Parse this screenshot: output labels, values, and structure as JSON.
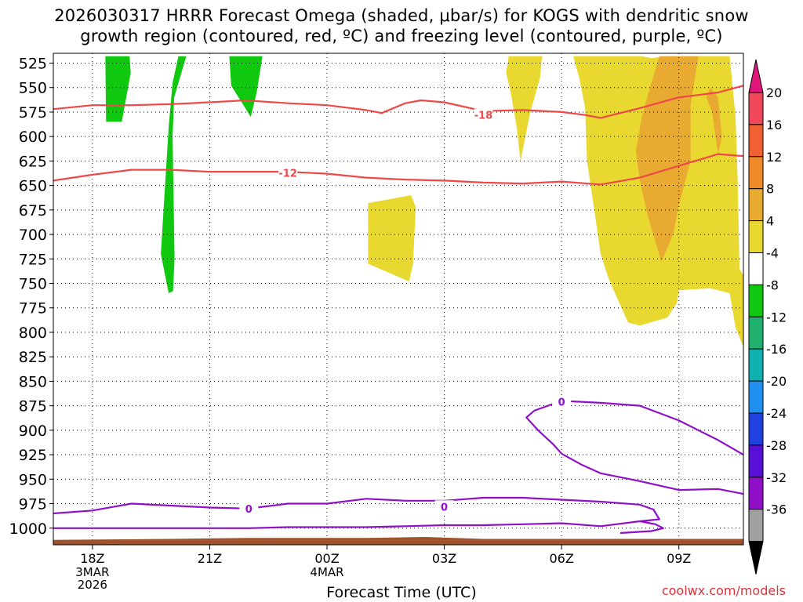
{
  "title_line1": "2026030317 HRRR Forecast Omega (shaded, μbar/s) for KOGS with dendritic snow",
  "title_line2": "growth region (contoured, red, ºC) and freezing level (contoured, purple, ºC)",
  "xlabel": "Forecast Time (UTC)",
  "credit": "coolwx.com/models",
  "chart_data": {
    "type": "heatmap",
    "x_range_hours": [
      -1.0,
      16.65
    ],
    "y_range_hpa": [
      515,
      1017
    ],
    "y_ticks": [
      525,
      550,
      575,
      600,
      625,
      650,
      675,
      700,
      725,
      750,
      775,
      800,
      825,
      850,
      875,
      900,
      925,
      950,
      975,
      1000
    ],
    "x_ticks": [
      {
        "h": 0,
        "label": "18Z",
        "sub": [
          "3MAR",
          "2026"
        ]
      },
      {
        "h": 3,
        "label": "21Z",
        "sub": []
      },
      {
        "h": 6,
        "label": "00Z",
        "sub": [
          "4MAR"
        ]
      },
      {
        "h": 9,
        "label": "03Z",
        "sub": []
      },
      {
        "h": 12,
        "label": "06Z",
        "sub": []
      },
      {
        "h": 15,
        "label": "09Z",
        "sub": []
      }
    ],
    "grid": true,
    "colorbar": {
      "labels": [
        "20",
        "16",
        "12",
        "8",
        "4",
        "-4",
        "-8",
        "-12",
        "-16",
        "-20",
        "-24",
        "-28",
        "-32",
        "-36"
      ],
      "colors": [
        "#f0485a",
        "#f06030",
        "#f08a28",
        "#e8aa30",
        "#e8d830",
        "#ffffff",
        "#10c810",
        "#20b070",
        "#10b0b0",
        "#2090f0",
        "#2040e0",
        "#5810d8",
        "#9010c8",
        "#a0a0a0"
      ],
      "top_color": "#e0167c",
      "bottom_color": "#000000"
    },
    "colors": {
      "dgz_line": "#f04848",
      "freezing_line": "#9010c8",
      "terrain": "#a0522d",
      "shade_light": "#e8d830",
      "shade_mid": "#e8aa30",
      "shade_neg": "#10c810"
    },
    "shaded_regions": [
      {
        "color": "#10c810",
        "points": [
          [
            0.33,
            518
          ],
          [
            0.95,
            518
          ],
          [
            0.98,
            535
          ],
          [
            0.75,
            585
          ],
          [
            0.35,
            585
          ]
        ]
      },
      {
        "color": "#10c810",
        "points": [
          [
            1.35,
            518
          ],
          [
            2.2,
            518
          ],
          [
            2.05,
            545
          ],
          [
            1.95,
            590
          ],
          [
            1.75,
            720
          ],
          [
            1.95,
            760
          ],
          [
            2.06,
            758
          ],
          [
            2.1,
            725
          ],
          [
            2.05,
            600
          ],
          [
            2.09,
            560
          ],
          [
            2.4,
            518
          ]
        ]
      },
      {
        "color": "#10c810",
        "points": [
          [
            3.5,
            518
          ],
          [
            4.35,
            518
          ],
          [
            4.2,
            555
          ],
          [
            4.05,
            580
          ],
          [
            3.55,
            548
          ]
        ]
      },
      {
        "color": "#e8d830",
        "points": [
          [
            7.05,
            668
          ],
          [
            8.15,
            660
          ],
          [
            8.27,
            672
          ],
          [
            8.2,
            730
          ],
          [
            8.1,
            748
          ],
          [
            7.05,
            730
          ]
        ]
      },
      {
        "color": "#e8d830",
        "points": [
          [
            10.65,
            518
          ],
          [
            11.5,
            518
          ],
          [
            11.45,
            540
          ],
          [
            11.2,
            575
          ],
          [
            10.95,
            625
          ],
          [
            10.85,
            590
          ],
          [
            10.7,
            555
          ],
          [
            10.58,
            535
          ]
        ]
      },
      {
        "color": "#e8d830",
        "points": [
          [
            12.3,
            518
          ],
          [
            14.05,
            518
          ],
          [
            14.3,
            520
          ],
          [
            14.7,
            518
          ],
          [
            15.5,
            518
          ],
          [
            15.9,
            518
          ],
          [
            16.3,
            518
          ],
          [
            16.45,
            580
          ],
          [
            16.5,
            640
          ],
          [
            16.55,
            735
          ],
          [
            16.65,
            742
          ],
          [
            16.65,
            815
          ],
          [
            16.45,
            795
          ],
          [
            16.3,
            760
          ],
          [
            15.8,
            755
          ],
          [
            15.0,
            757
          ],
          [
            14.95,
            770
          ],
          [
            14.7,
            785
          ],
          [
            14.0,
            793
          ],
          [
            13.7,
            790
          ],
          [
            13.2,
            745
          ],
          [
            13.0,
            720
          ],
          [
            12.8,
            665
          ],
          [
            12.65,
            625
          ],
          [
            12.6,
            570
          ],
          [
            12.45,
            540
          ]
        ]
      },
      {
        "color": "#e8aa30",
        "points": [
          [
            14.7,
            518
          ],
          [
            15.5,
            518
          ],
          [
            15.45,
            530
          ],
          [
            15.3,
            568
          ],
          [
            15.3,
            625
          ],
          [
            15.0,
            670
          ],
          [
            14.85,
            700
          ],
          [
            14.55,
            728
          ],
          [
            14.2,
            680
          ],
          [
            14.0,
            645
          ],
          [
            13.9,
            615
          ],
          [
            14.05,
            580
          ],
          [
            14.3,
            545
          ],
          [
            14.5,
            518
          ]
        ]
      },
      {
        "color": "#e8aa30",
        "points": [
          [
            15.8,
            550
          ],
          [
            16.0,
            560
          ],
          [
            16.1,
            600
          ],
          [
            16.0,
            618
          ],
          [
            15.85,
            575
          ],
          [
            15.7,
            560
          ]
        ]
      }
    ],
    "contours": [
      {
        "name": "-18",
        "color": "#f04848",
        "label_at": [
          10.0,
          578
        ],
        "points": [
          [
            -1.0,
            572
          ],
          [
            0.0,
            568
          ],
          [
            1.0,
            568
          ],
          [
            2.0,
            567
          ],
          [
            3.0,
            565
          ],
          [
            3.9,
            563
          ],
          [
            5.0,
            566
          ],
          [
            6.0,
            568
          ],
          [
            7.0,
            573
          ],
          [
            7.4,
            576
          ],
          [
            8.0,
            566
          ],
          [
            8.4,
            563
          ],
          [
            9.0,
            565
          ],
          [
            10.0,
            574
          ],
          [
            11.0,
            573
          ],
          [
            12.0,
            575
          ],
          [
            12.6,
            578
          ],
          [
            13.0,
            581
          ],
          [
            13.2,
            579
          ],
          [
            14.0,
            571
          ],
          [
            15.0,
            560
          ],
          [
            16.0,
            555
          ],
          [
            16.65,
            548
          ]
        ]
      },
      {
        "name": "-12",
        "color": "#f04848",
        "label_at": [
          5.0,
          637
        ],
        "points": [
          [
            -1.0,
            645
          ],
          [
            0.0,
            639
          ],
          [
            1.0,
            634
          ],
          [
            2.0,
            634
          ],
          [
            3.0,
            636
          ],
          [
            4.0,
            636
          ],
          [
            5.0,
            636
          ],
          [
            6.0,
            638
          ],
          [
            7.0,
            642
          ],
          [
            8.0,
            644
          ],
          [
            9.0,
            645
          ],
          [
            10.0,
            647
          ],
          [
            11.0,
            648
          ],
          [
            12.0,
            646
          ],
          [
            13.0,
            649
          ],
          [
            14.0,
            642
          ],
          [
            15.0,
            630
          ],
          [
            16.0,
            618
          ],
          [
            16.65,
            620
          ]
        ]
      },
      {
        "name": "0",
        "color": "#9010c8",
        "label_at": [
          4.0,
          980
        ],
        "points": [
          [
            -1.0,
            985
          ],
          [
            0.0,
            982
          ],
          [
            1.0,
            975
          ],
          [
            2.0,
            977
          ],
          [
            3.0,
            979
          ],
          [
            4.0,
            980
          ],
          [
            5.0,
            975
          ],
          [
            6.0,
            975
          ],
          [
            7.0,
            970
          ],
          [
            8.0,
            972
          ],
          [
            9.0,
            972
          ],
          [
            10.0,
            969
          ],
          [
            11.0,
            969
          ],
          [
            12.0,
            971
          ],
          [
            13.0,
            973
          ],
          [
            14.0,
            976
          ],
          [
            14.35,
            981
          ],
          [
            14.5,
            991
          ],
          [
            14.0,
            993
          ],
          [
            13.0,
            998
          ],
          [
            12.0,
            995
          ],
          [
            11.0,
            996
          ],
          [
            10.0,
            997
          ],
          [
            9.0,
            997
          ],
          [
            8.0,
            998
          ],
          [
            7.0,
            999
          ],
          [
            6.0,
            999
          ],
          [
            5.0,
            999
          ],
          [
            4.0,
            1000
          ],
          [
            3.0,
            1000
          ],
          [
            2.0,
            1000
          ],
          [
            1.0,
            1000
          ],
          [
            0.0,
            1000
          ],
          [
            -1.0,
            1000
          ]
        ]
      },
      {
        "name": "0",
        "color": "#9010c8",
        "label_at": [
          12.0,
          871
        ],
        "points": [
          [
            16.65,
            925
          ],
          [
            16.0,
            910
          ],
          [
            15.0,
            890
          ],
          [
            14.0,
            875
          ],
          [
            13.0,
            872
          ],
          [
            12.0,
            870
          ],
          [
            11.3,
            880
          ],
          [
            11.1,
            887
          ],
          [
            11.4,
            900
          ],
          [
            11.8,
            915
          ],
          [
            12.0,
            924
          ],
          [
            12.5,
            935
          ],
          [
            13.0,
            944
          ],
          [
            14.0,
            952
          ],
          [
            15.0,
            961
          ],
          [
            16.0,
            960
          ],
          [
            16.65,
            965
          ]
        ]
      },
      {
        "name": "0",
        "color": "#9010c8",
        "label_at": [
          9.0,
          978
        ],
        "points": [
          [
            13.5,
            1005
          ],
          [
            14.3,
            1003
          ],
          [
            14.6,
            1000
          ],
          [
            14.4,
            996
          ],
          [
            14.0,
            993
          ]
        ]
      }
    ],
    "terrain_hpa": [
      [
        -1.0,
        1012
      ],
      [
        2.0,
        1011
      ],
      [
        4.0,
        1010
      ],
      [
        7.0,
        1010
      ],
      [
        8.5,
        1009
      ],
      [
        10.0,
        1011
      ],
      [
        13.0,
        1011
      ],
      [
        16.65,
        1011
      ]
    ]
  }
}
